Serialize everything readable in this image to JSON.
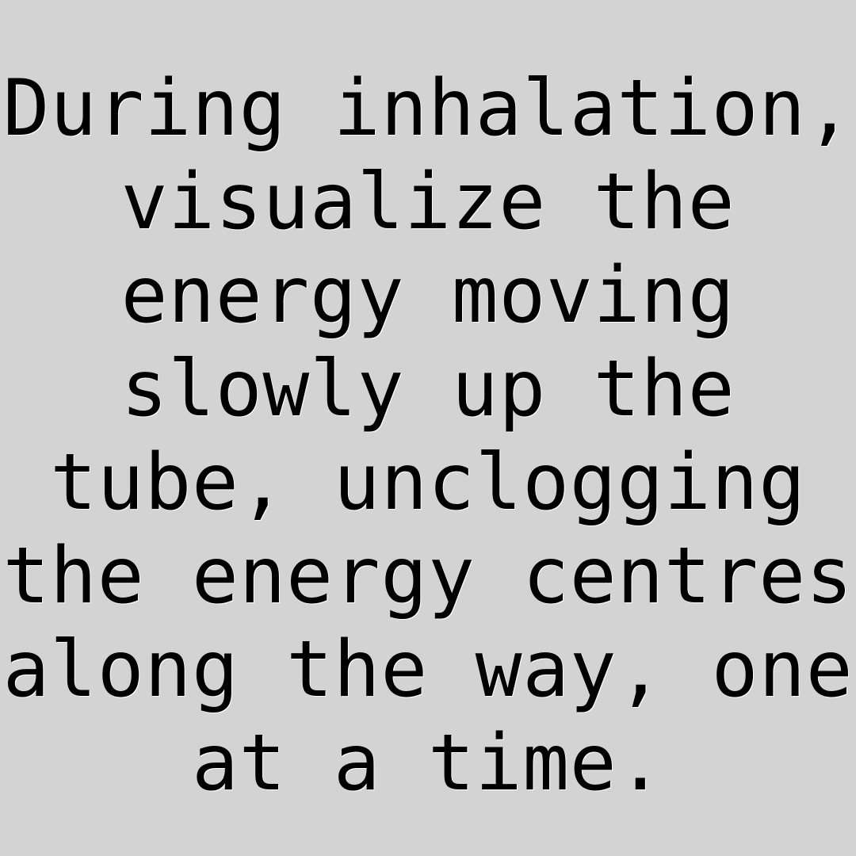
{
  "colors": {
    "background": "#d3d3d3",
    "text": "#000000",
    "text_highlight": "#ffffff"
  },
  "quote": {
    "lines": [
      "During inhalation,",
      "visualize the",
      "energy moving",
      "slowly up the",
      "tube, unclogging",
      "the energy centres",
      "along the way, one",
      "at a time."
    ]
  }
}
